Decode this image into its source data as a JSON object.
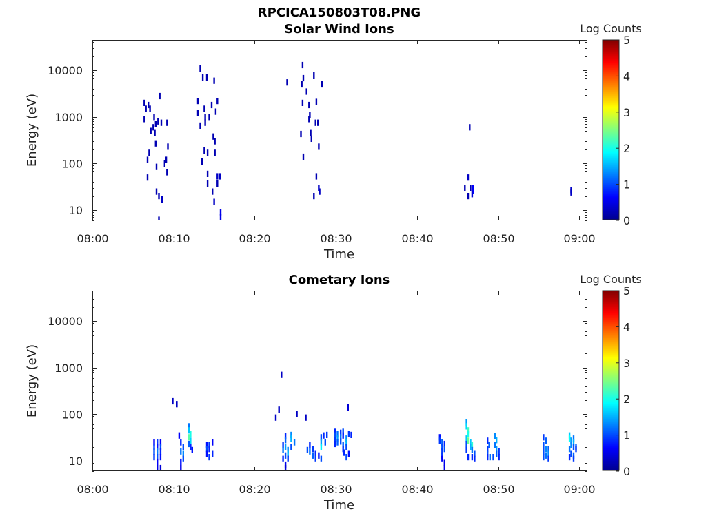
{
  "figure": {
    "title": "RPCICA150803T08.PNG"
  },
  "chart_data": [
    {
      "type": "heatmap",
      "title": "Solar Wind Ions",
      "xlabel": "Time",
      "ylabel": "Energy (eV)",
      "x_ticks": [
        "08:00",
        "08:10",
        "08:20",
        "08:30",
        "08:40",
        "08:50",
        "09:00"
      ],
      "xlim_minutes": [
        0,
        61
      ],
      "y_scale": "log",
      "y_ticks": [
        "10",
        "100",
        "1000",
        "10000"
      ],
      "ylim": [
        6,
        45000
      ],
      "colorbar": {
        "label": "Log Counts",
        "ticks": [
          "0",
          "1",
          "2",
          "3",
          "4",
          "5"
        ],
        "range": [
          0,
          5
        ]
      },
      "points": [
        [
          6.4,
          2000,
          0.2
        ],
        [
          6.6,
          1500,
          0.2
        ],
        [
          6.9,
          1800,
          0.2
        ],
        [
          7.1,
          1500,
          0.2
        ],
        [
          6.4,
          900,
          0.2
        ],
        [
          7.6,
          1000,
          0.2
        ],
        [
          7.8,
          700,
          0.2
        ],
        [
          7.5,
          600,
          0.2
        ],
        [
          8.1,
          800,
          0.2
        ],
        [
          8.5,
          750,
          0.2
        ],
        [
          7.2,
          500,
          0.2
        ],
        [
          7.7,
          450,
          0.2
        ],
        [
          8.3,
          2800,
          0.2
        ],
        [
          9.2,
          750,
          0.2
        ],
        [
          7.0,
          170,
          0.2
        ],
        [
          6.8,
          120,
          0.2
        ],
        [
          7.8,
          270,
          0.2
        ],
        [
          9.3,
          230,
          0.2
        ],
        [
          9.1,
          120,
          0.2
        ],
        [
          8.9,
          100,
          0.2
        ],
        [
          7.9,
          85,
          0.2
        ],
        [
          9.2,
          65,
          0.2
        ],
        [
          6.8,
          50,
          0.2
        ],
        [
          7.9,
          25,
          0.2
        ],
        [
          8.2,
          20,
          0.2
        ],
        [
          8.6,
          17,
          0.3
        ],
        [
          8.2,
          6.2,
          0.2
        ],
        [
          13.3,
          11000,
          0.2
        ],
        [
          13.6,
          7000,
          0.2
        ],
        [
          14.1,
          7000,
          0.2
        ],
        [
          15.0,
          6000,
          0.2
        ],
        [
          13.0,
          2200,
          0.2
        ],
        [
          13.8,
          1500,
          0.2
        ],
        [
          14.7,
          1800,
          0.2
        ],
        [
          15.4,
          2200,
          0.2
        ],
        [
          13.0,
          1200,
          0.2
        ],
        [
          13.9,
          1000,
          0.2
        ],
        [
          14.4,
          1000,
          0.2
        ],
        [
          15.2,
          1300,
          0.2
        ],
        [
          13.3,
          650,
          0.2
        ],
        [
          13.9,
          750,
          0.2
        ],
        [
          14.9,
          380,
          0.2
        ],
        [
          15.1,
          300,
          0.2
        ],
        [
          13.8,
          190,
          0.2
        ],
        [
          14.2,
          170,
          0.2
        ],
        [
          15.1,
          170,
          0.2
        ],
        [
          13.5,
          110,
          0.2
        ],
        [
          14.2,
          60,
          0.2
        ],
        [
          14.2,
          37,
          0.2
        ],
        [
          15.4,
          53,
          0.3
        ],
        [
          15.7,
          53,
          0.3
        ],
        [
          15.4,
          37,
          0.2
        ],
        [
          14.8,
          25,
          0.2
        ],
        [
          15.0,
          15,
          0.3
        ],
        [
          15.8,
          9,
          0.5
        ],
        [
          15.8,
          7,
          0.5
        ],
        [
          24.0,
          5500,
          0.2
        ],
        [
          25.9,
          13000,
          0.2
        ],
        [
          26.0,
          6800,
          0.2
        ],
        [
          27.3,
          7800,
          0.2
        ],
        [
          25.8,
          5000,
          0.2
        ],
        [
          26.4,
          3500,
          0.2
        ],
        [
          28.3,
          5000,
          0.2
        ],
        [
          25.9,
          2000,
          0.2
        ],
        [
          26.7,
          1800,
          0.2
        ],
        [
          27.6,
          2100,
          0.2
        ],
        [
          26.8,
          1100,
          0.2
        ],
        [
          26.7,
          900,
          0.2
        ],
        [
          27.5,
          750,
          0.2
        ],
        [
          27.8,
          750,
          0.2
        ],
        [
          25.7,
          430,
          0.2
        ],
        [
          26.9,
          450,
          0.2
        ],
        [
          27.0,
          340,
          0.2
        ],
        [
          27.9,
          230,
          0.2
        ],
        [
          26.0,
          140,
          0.2
        ],
        [
          27.6,
          53,
          0.2
        ],
        [
          27.9,
          30,
          0.3
        ],
        [
          28.0,
          25,
          0.3
        ],
        [
          27.3,
          20,
          0.2
        ],
        [
          46.5,
          600,
          0.2
        ],
        [
          45.9,
          30,
          0.2
        ],
        [
          46.3,
          50,
          0.3
        ],
        [
          46.6,
          30,
          0.2
        ],
        [
          46.3,
          20,
          0.2
        ],
        [
          46.9,
          30,
          0.6
        ],
        [
          46.9,
          26,
          0.6
        ],
        [
          46.8,
          22,
          0.4
        ],
        [
          59.0,
          27,
          0.3
        ],
        [
          59.0,
          24,
          0.3
        ]
      ]
    },
    {
      "type": "heatmap",
      "title": "Cometary Ions",
      "xlabel": "Time",
      "ylabel": "Energy (eV)",
      "x_ticks": [
        "08:00",
        "08:10",
        "08:20",
        "08:30",
        "08:40",
        "08:50",
        "09:00"
      ],
      "xlim_minutes": [
        0,
        61
      ],
      "y_scale": "log",
      "y_ticks": [
        "10",
        "100",
        "1000",
        "10000"
      ],
      "ylim": [
        6,
        45000
      ],
      "colorbar": {
        "label": "Log Counts",
        "ticks": [
          "0",
          "1",
          "2",
          "3",
          "4",
          "5"
        ],
        "range": [
          0,
          5
        ]
      },
      "points": [
        [
          9.9,
          190,
          0.3
        ],
        [
          10.4,
          165,
          0.3
        ],
        [
          23.3,
          700,
          0.3
        ],
        [
          22.6,
          85,
          0.3
        ],
        [
          23.0,
          125,
          0.3
        ],
        [
          25.2,
          100,
          0.3
        ],
        [
          26.3,
          85,
          0.3
        ],
        [
          31.5,
          140,
          0.4
        ],
        [
          7.6,
          25,
          0.6
        ],
        [
          7.6,
          20,
          0.9
        ],
        [
          7.6,
          16,
          1.0
        ],
        [
          7.6,
          12,
          0.9
        ],
        [
          8.0,
          25,
          0.9
        ],
        [
          8.0,
          20,
          0.7
        ],
        [
          8.0,
          16,
          1.2
        ],
        [
          8.0,
          12,
          1.0
        ],
        [
          8.4,
          25,
          0.6
        ],
        [
          8.4,
          20,
          1.0
        ],
        [
          8.4,
          16,
          0.8
        ],
        [
          8.4,
          12,
          0.7
        ],
        [
          8.0,
          9.5,
          0.6
        ],
        [
          8.0,
          7,
          0.5
        ],
        [
          8.4,
          7,
          0.4
        ],
        [
          10.7,
          35,
          0.6
        ],
        [
          10.9,
          25,
          0.8
        ],
        [
          11.2,
          20,
          1.0
        ],
        [
          10.9,
          16,
          1.2
        ],
        [
          11.2,
          14,
          1.3
        ],
        [
          11.2,
          11,
          1.0
        ],
        [
          10.9,
          9.5,
          0.7
        ],
        [
          10.9,
          7,
          0.5
        ],
        [
          11.9,
          55,
          1.2
        ],
        [
          11.9,
          45,
          1.6
        ],
        [
          12.1,
          38,
          2.0
        ],
        [
          11.9,
          32,
          2.3
        ],
        [
          12.1,
          27,
          1.7
        ],
        [
          11.9,
          23,
          1.1
        ],
        [
          12.1,
          20,
          0.8
        ],
        [
          12.3,
          17,
          0.7
        ],
        [
          14.1,
          22,
          0.7
        ],
        [
          14.4,
          22,
          0.9
        ],
        [
          14.1,
          18,
          1.0
        ],
        [
          14.4,
          18,
          0.8
        ],
        [
          14.1,
          14,
          0.7
        ],
        [
          14.4,
          12,
          0.9
        ],
        [
          14.8,
          25,
          0.6
        ],
        [
          14.8,
          14,
          0.8
        ],
        [
          23.8,
          34,
          0.8
        ],
        [
          23.8,
          28,
          1.1
        ],
        [
          23.5,
          22,
          0.9
        ],
        [
          23.8,
          20,
          1.4
        ],
        [
          23.5,
          17,
          1.2
        ],
        [
          24.1,
          17,
          1.3
        ],
        [
          24.1,
          14,
          1.5
        ],
        [
          23.8,
          13,
          1.0
        ],
        [
          23.5,
          11,
          0.8
        ],
        [
          24.1,
          11,
          0.9
        ],
        [
          23.8,
          8,
          0.5
        ],
        [
          23.8,
          7,
          0.4
        ],
        [
          24.5,
          36,
          1.3
        ],
        [
          24.5,
          30,
          1.5
        ],
        [
          24.5,
          20,
          1.0
        ],
        [
          24.9,
          25,
          1.2
        ],
        [
          26.5,
          17,
          1.0
        ],
        [
          26.8,
          22,
          0.8
        ],
        [
          26.8,
          16,
          1.2
        ],
        [
          27.2,
          18,
          0.9
        ],
        [
          27.2,
          13,
          1.1
        ],
        [
          27.5,
          14,
          0.8
        ],
        [
          27.5,
          11,
          0.9
        ],
        [
          27.9,
          13,
          0.7
        ],
        [
          28.2,
          32,
          1.0
        ],
        [
          28.2,
          25,
          1.4
        ],
        [
          28.2,
          20,
          1.8
        ],
        [
          28.5,
          35,
          0.8
        ],
        [
          28.7,
          25,
          1.0
        ],
        [
          28.9,
          36,
          0.9
        ],
        [
          28.2,
          11,
          1.0
        ],
        [
          29.9,
          42,
          0.8
        ],
        [
          29.9,
          35,
          1.0
        ],
        [
          29.9,
          28,
          0.9
        ],
        [
          29.9,
          23,
          0.8
        ],
        [
          30.2,
          38,
          1.2
        ],
        [
          30.2,
          30,
          1.4
        ],
        [
          30.2,
          25,
          1.1
        ],
        [
          30.6,
          40,
          0.9
        ],
        [
          30.6,
          32,
          1.2
        ],
        [
          30.6,
          26,
          1.0
        ],
        [
          30.9,
          42,
          1.0
        ],
        [
          30.9,
          35,
          0.8
        ],
        [
          30.9,
          22,
          1.1
        ],
        [
          30.9,
          18,
          0.9
        ],
        [
          31.3,
          30,
          1.3
        ],
        [
          31.3,
          25,
          1.5
        ],
        [
          31.3,
          20,
          1.0
        ],
        [
          31.0,
          15,
          0.8
        ],
        [
          31.6,
          38,
          0.9
        ],
        [
          31.9,
          36,
          0.8
        ],
        [
          31.6,
          14,
          0.7
        ],
        [
          31.3,
          12,
          1.0
        ],
        [
          42.8,
          32,
          0.7
        ],
        [
          42.8,
          27,
          0.9
        ],
        [
          43.1,
          25,
          1.1
        ],
        [
          43.1,
          20,
          1.0
        ],
        [
          43.1,
          16,
          0.9
        ],
        [
          43.4,
          23,
          0.8
        ],
        [
          43.4,
          18,
          1.0
        ],
        [
          43.1,
          13,
          0.9
        ],
        [
          43.1,
          11,
          0.6
        ],
        [
          43.4,
          9,
          0.5
        ],
        [
          43.4,
          7,
          0.5
        ],
        [
          46.1,
          66,
          1.4
        ],
        [
          46.1,
          55,
          1.7
        ],
        [
          46.3,
          45,
          2.2
        ],
        [
          46.3,
          38,
          2.0
        ],
        [
          46.1,
          30,
          1.6
        ],
        [
          46.3,
          27,
          2.4
        ],
        [
          46.6,
          25,
          1.6
        ],
        [
          46.8,
          22,
          2.1
        ],
        [
          46.6,
          20,
          1.5
        ],
        [
          46.8,
          17,
          1.2
        ],
        [
          46.1,
          23,
          1.0
        ],
        [
          46.1,
          17,
          0.9
        ],
        [
          46.3,
          12,
          0.8
        ],
        [
          46.8,
          12,
          0.8
        ],
        [
          47.1,
          14,
          1.0
        ],
        [
          47.1,
          11,
          0.8
        ],
        [
          48.7,
          27,
          0.8
        ],
        [
          48.9,
          22,
          1.1
        ],
        [
          48.7,
          18,
          0.9
        ],
        [
          48.7,
          14,
          1.0
        ],
        [
          48.7,
          12,
          0.8
        ],
        [
          49.0,
          12,
          1.2
        ],
        [
          49.4,
          12,
          1.0
        ],
        [
          49.6,
          34,
          1.3
        ],
        [
          49.8,
          28,
          1.5
        ],
        [
          49.6,
          22,
          1.2
        ],
        [
          49.8,
          18,
          1.4
        ],
        [
          49.8,
          14,
          1.1
        ],
        [
          50.1,
          16,
          0.9
        ],
        [
          50.1,
          12,
          0.8
        ],
        [
          55.6,
          32,
          0.9
        ],
        [
          55.9,
          27,
          1.1
        ],
        [
          55.6,
          22,
          1.0
        ],
        [
          55.9,
          18,
          1.3
        ],
        [
          55.6,
          16,
          1.0
        ],
        [
          55.9,
          13,
          1.2
        ],
        [
          55.6,
          12,
          1.0
        ],
        [
          56.2,
          18,
          1.1
        ],
        [
          56.2,
          14,
          1.3
        ],
        [
          56.2,
          11,
          0.9
        ],
        [
          58.8,
          35,
          1.6
        ],
        [
          58.8,
          30,
          1.9
        ],
        [
          59.0,
          27,
          1.4
        ],
        [
          59.3,
          30,
          1.2
        ],
        [
          59.3,
          25,
          1.5
        ],
        [
          59.0,
          22,
          1.3
        ],
        [
          59.3,
          20,
          1.0
        ],
        [
          58.8,
          18,
          1.2
        ],
        [
          59.6,
          20,
          1.1
        ],
        [
          59.6,
          18,
          0.9
        ],
        [
          59.0,
          14,
          1.0
        ],
        [
          59.3,
          13,
          1.1
        ],
        [
          58.8,
          12,
          0.8
        ],
        [
          59.3,
          11,
          0.9
        ]
      ]
    }
  ]
}
